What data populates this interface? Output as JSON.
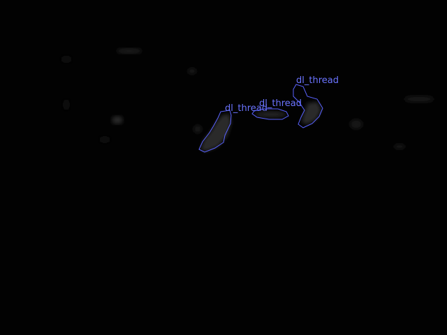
{
  "image": {
    "background_color": "#020202",
    "annotation_color": "#5a63ff"
  },
  "annotations": [
    {
      "label": "dl_thread"
    },
    {
      "label": "dl_thread"
    },
    {
      "label": "dl_thread"
    }
  ]
}
